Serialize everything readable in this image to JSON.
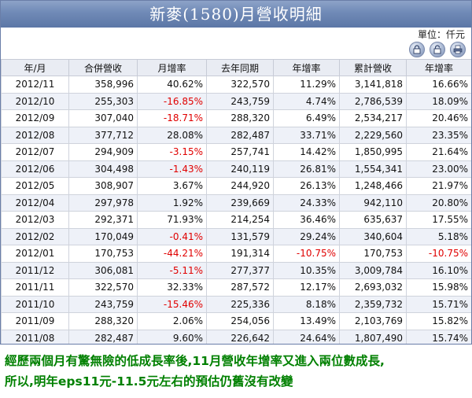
{
  "title": "新麥(1580)月營收明細",
  "unit": "單位：仟元",
  "columns": [
    "年/月",
    "合併營收",
    "月增率",
    "去年同期",
    "年增率",
    "累計營收",
    "年增率"
  ],
  "rows": [
    {
      "month": "2012/11",
      "revenue": "358,996",
      "mom": "40.62%",
      "last_year": "322,570",
      "yoy": "11.29%",
      "cumulative": "3,141,818",
      "cum_yoy": "16.66%"
    },
    {
      "month": "2012/10",
      "revenue": "255,303",
      "mom": "-16.85%",
      "last_year": "243,759",
      "yoy": "4.74%",
      "cumulative": "2,786,539",
      "cum_yoy": "18.09%"
    },
    {
      "month": "2012/09",
      "revenue": "307,040",
      "mom": "-18.71%",
      "last_year": "288,320",
      "yoy": "6.49%",
      "cumulative": "2,534,217",
      "cum_yoy": "20.46%"
    },
    {
      "month": "2012/08",
      "revenue": "377,712",
      "mom": "28.08%",
      "last_year": "282,487",
      "yoy": "33.71%",
      "cumulative": "2,229,560",
      "cum_yoy": "23.35%"
    },
    {
      "month": "2012/07",
      "revenue": "294,909",
      "mom": "-3.15%",
      "last_year": "257,741",
      "yoy": "14.42%",
      "cumulative": "1,850,995",
      "cum_yoy": "21.64%"
    },
    {
      "month": "2012/06",
      "revenue": "304,498",
      "mom": "-1.43%",
      "last_year": "240,119",
      "yoy": "26.81%",
      "cumulative": "1,554,341",
      "cum_yoy": "23.00%"
    },
    {
      "month": "2012/05",
      "revenue": "308,907",
      "mom": "3.67%",
      "last_year": "244,920",
      "yoy": "26.13%",
      "cumulative": "1,248,466",
      "cum_yoy": "21.97%"
    },
    {
      "month": "2012/04",
      "revenue": "297,978",
      "mom": "1.92%",
      "last_year": "239,669",
      "yoy": "24.33%",
      "cumulative": "942,110",
      "cum_yoy": "20.80%"
    },
    {
      "month": "2012/03",
      "revenue": "292,371",
      "mom": "71.93%",
      "last_year": "214,254",
      "yoy": "36.46%",
      "cumulative": "635,637",
      "cum_yoy": "17.55%"
    },
    {
      "month": "2012/02",
      "revenue": "170,049",
      "mom": "-0.41%",
      "last_year": "131,579",
      "yoy": "29.24%",
      "cumulative": "340,604",
      "cum_yoy": "5.18%"
    },
    {
      "month": "2012/01",
      "revenue": "170,753",
      "mom": "-44.21%",
      "last_year": "191,314",
      "yoy": "-10.75%",
      "cumulative": "170,753",
      "cum_yoy": "-10.75%"
    },
    {
      "month": "2011/12",
      "revenue": "306,081",
      "mom": "-5.11%",
      "last_year": "277,377",
      "yoy": "10.35%",
      "cumulative": "3,009,784",
      "cum_yoy": "16.10%"
    },
    {
      "month": "2011/11",
      "revenue": "322,570",
      "mom": "32.33%",
      "last_year": "287,572",
      "yoy": "12.17%",
      "cumulative": "2,693,032",
      "cum_yoy": "15.98%"
    },
    {
      "month": "2011/10",
      "revenue": "243,759",
      "mom": "-15.46%",
      "last_year": "225,336",
      "yoy": "8.18%",
      "cumulative": "2,359,732",
      "cum_yoy": "15.71%"
    },
    {
      "month": "2011/09",
      "revenue": "288,320",
      "mom": "2.06%",
      "last_year": "254,056",
      "yoy": "13.49%",
      "cumulative": "2,103,769",
      "cum_yoy": "15.82%"
    },
    {
      "month": "2011/08",
      "revenue": "282,487",
      "mom": "9.60%",
      "last_year": "226,642",
      "yoy": "24.64%",
      "cumulative": "1,807,490",
      "cum_yoy": "15.74%"
    }
  ],
  "icons": [
    "lock-icon",
    "unlock-icon",
    "print-icon"
  ],
  "colors": {
    "header": "#6f89b6",
    "negative": "#e00000",
    "note": "#008000",
    "alt_row": "#eef1f8"
  },
  "note": [
    "經歷兩個月有驚無險的低成長率後,11月營收年增率又進入兩位數成長,",
    "所以,明年eps11元-11.5元左右的預估仍舊沒有改變"
  ]
}
